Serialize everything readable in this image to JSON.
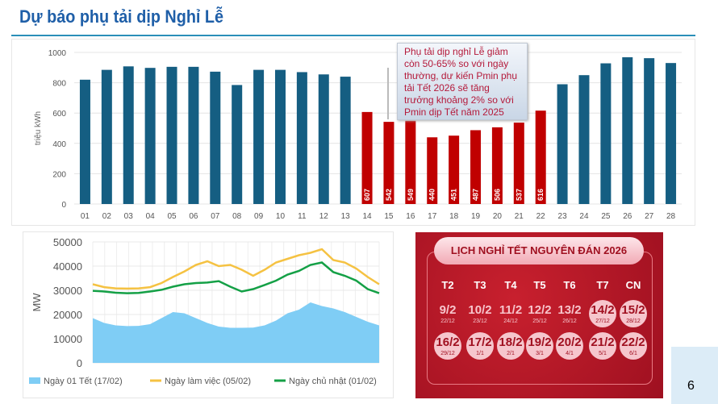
{
  "title": "Dự báo phụ tải dịp Nghỉ Lễ",
  "page_number": "6",
  "callout": "Phụ tải dịp nghỉ Lễ giảm còn 50-65% so với ngày thường, dự kiến Pmin phụ tải Tết 2026 sẽ tăng trưởng khoảng 2% so với Pmin dịp Tết năm 2025",
  "chart_data": [
    {
      "type": "bar",
      "ylabel": "triệu kWh",
      "ylim": [
        0,
        1000
      ],
      "yticks": [
        0,
        200,
        400,
        600,
        800,
        1000
      ],
      "grid": true,
      "categories": [
        "01",
        "02",
        "03",
        "04",
        "05",
        "06",
        "07",
        "08",
        "09",
        "10",
        "11",
        "12",
        "13",
        "14",
        "15",
        "16",
        "17",
        "18",
        "19",
        "20",
        "21",
        "22",
        "23",
        "24",
        "25",
        "26",
        "27",
        "28"
      ],
      "values": [
        820,
        885,
        908,
        898,
        905,
        905,
        873,
        785,
        885,
        885,
        870,
        855,
        840,
        607,
        542,
        549,
        440,
        451,
        487,
        506,
        537,
        616,
        790,
        850,
        928,
        968,
        962,
        930
      ],
      "highlight_range": [
        "14",
        "22"
      ],
      "colors": {
        "normal": "#155e82",
        "holiday": "#c00000"
      },
      "data_labels": {
        "14": "607",
        "15": "542",
        "16": "549",
        "17": "440",
        "18": "451",
        "19": "487",
        "20": "506",
        "21": "537",
        "22": "616"
      }
    },
    {
      "type": "area+line",
      "ylabel": "MW",
      "ylim": [
        0,
        50000
      ],
      "yticks": [
        0,
        10000,
        20000,
        30000,
        40000,
        50000
      ],
      "grid": true,
      "legend": "bottom",
      "series": [
        {
          "name": "Ngày 01 Tết (17/02)",
          "type": "area",
          "color": "#7fcdf5",
          "values": [
            18500,
            16500,
            15500,
            15200,
            15300,
            16000,
            18500,
            21000,
            20500,
            18500,
            16500,
            15000,
            14500,
            14500,
            14600,
            15500,
            17500,
            20500,
            22000,
            25000,
            23500,
            22500,
            21000,
            19000,
            17000,
            15500
          ]
        },
        {
          "name": "Ngày làm việc (05/02)",
          "type": "line",
          "color": "#f5c242",
          "values": [
            32500,
            31300,
            30800,
            30700,
            30800,
            31300,
            33000,
            35500,
            37800,
            40500,
            42000,
            40000,
            40500,
            38500,
            36000,
            38500,
            41500,
            43000,
            44500,
            45500,
            47000,
            42500,
            41500,
            39000,
            35500,
            32500
          ]
        },
        {
          "name": "Ngày chủ nhật (01/02)",
          "type": "line",
          "color": "#14a046",
          "values": [
            29800,
            29500,
            29000,
            28800,
            28900,
            29500,
            30200,
            31500,
            32500,
            33000,
            33200,
            33800,
            31500,
            29500,
            30500,
            32200,
            34000,
            36500,
            38000,
            40500,
            41500,
            37500,
            36000,
            34000,
            30500,
            28800
          ]
        }
      ]
    }
  ],
  "calendar": {
    "title": "LỊCH NGHỈ TẾT NGUYÊN ĐÁN 2026",
    "weekdays": [
      "T2",
      "T3",
      "T4",
      "T5",
      "T6",
      "T7",
      "CN"
    ],
    "days": [
      {
        "d": "9/2",
        "l": "22/12",
        "off": false
      },
      {
        "d": "10/2",
        "l": "23/12",
        "off": false
      },
      {
        "d": "11/2",
        "l": "24/12",
        "off": false
      },
      {
        "d": "12/2",
        "l": "25/12",
        "off": false
      },
      {
        "d": "13/2",
        "l": "26/12",
        "off": false
      },
      {
        "d": "14/2",
        "l": "27/12",
        "off": true
      },
      {
        "d": "15/2",
        "l": "28/12",
        "off": true
      },
      {
        "d": "16/2",
        "l": "29/12",
        "off": true
      },
      {
        "d": "17/2",
        "l": "1/1",
        "off": true
      },
      {
        "d": "18/2",
        "l": "2/1",
        "off": true
      },
      {
        "d": "19/2",
        "l": "3/1",
        "off": true
      },
      {
        "d": "20/2",
        "l": "4/1",
        "off": true
      },
      {
        "d": "21/2",
        "l": "5/1",
        "off": true
      },
      {
        "d": "22/2",
        "l": "6/1",
        "off": true
      }
    ]
  }
}
